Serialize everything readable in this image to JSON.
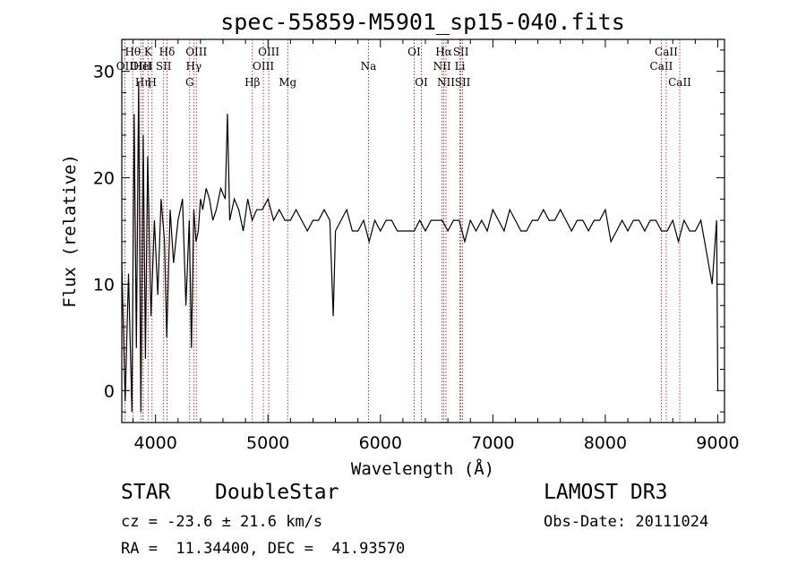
{
  "chart_data": {
    "type": "line",
    "title": "spec-55859-M5901_sp15-040.fits",
    "xlabel": "Wavelength (Å)",
    "ylabel": "Flux (relative)",
    "xlim": [
      3700,
      9060
    ],
    "ylim": [
      -3,
      33
    ],
    "xticks": [
      4000,
      5000,
      6000,
      7000,
      8000,
      9000
    ],
    "yticks": [
      0,
      10,
      20,
      30
    ],
    "series": [
      {
        "name": "flux",
        "x": [
          3700,
          3730,
          3760,
          3790,
          3810,
          3830,
          3850,
          3870,
          3890,
          3910,
          3930,
          3960,
          3990,
          4020,
          4050,
          4080,
          4100,
          4130,
          4160,
          4200,
          4240,
          4270,
          4300,
          4320,
          4340,
          4360,
          4380,
          4400,
          4420,
          4450,
          4480,
          4510,
          4540,
          4580,
          4620,
          4640,
          4660,
          4700,
          4740,
          4780,
          4820,
          4860,
          4900,
          4950,
          5000,
          5050,
          5100,
          5150,
          5200,
          5250,
          5300,
          5350,
          5400,
          5450,
          5500,
          5550,
          5580,
          5600,
          5650,
          5700,
          5750,
          5800,
          5850,
          5900,
          5950,
          6000,
          6050,
          6100,
          6150,
          6200,
          6250,
          6300,
          6350,
          6400,
          6450,
          6500,
          6550,
          6600,
          6650,
          6700,
          6750,
          6800,
          6850,
          6900,
          6950,
          7000,
          7050,
          7100,
          7150,
          7200,
          7250,
          7300,
          7350,
          7400,
          7450,
          7500,
          7550,
          7600,
          7650,
          7700,
          7750,
          7800,
          7850,
          7900,
          7950,
          8000,
          8050,
          8100,
          8150,
          8200,
          8250,
          8300,
          8350,
          8400,
          8450,
          8500,
          8550,
          8600,
          8650,
          8700,
          8750,
          8800,
          8850,
          8900,
          8950,
          8990,
          9000
        ],
        "y": [
          12,
          -1,
          11,
          -2,
          26,
          4,
          29,
          -2,
          24,
          3,
          22,
          7,
          16,
          9,
          18,
          14,
          5,
          17,
          12,
          16,
          18,
          8,
          16,
          4,
          17,
          14,
          15,
          18,
          17,
          19,
          18,
          16,
          17,
          19,
          18,
          26,
          16,
          18,
          17,
          15,
          18,
          16,
          17,
          17,
          18,
          16,
          17,
          16,
          16,
          17,
          16,
          15,
          16,
          16,
          17,
          16,
          7,
          15,
          16,
          17,
          15,
          15,
          16,
          14,
          16,
          15,
          16,
          16,
          15,
          15,
          15,
          15,
          16,
          15,
          16,
          16,
          16,
          15,
          16,
          16,
          14,
          16,
          15,
          16,
          15,
          17,
          16,
          15,
          17,
          16,
          15,
          15,
          16,
          16,
          17,
          16,
          16,
          17,
          16,
          15,
          16,
          16,
          15,
          16,
          16,
          17,
          14,
          15,
          16,
          15,
          16,
          16,
          15,
          16,
          16,
          15,
          15,
          16,
          14,
          16,
          15,
          15,
          16,
          13,
          10,
          16,
          0
        ],
        "color": "#000000"
      }
    ],
    "line_markers": [
      {
        "label": "OII",
        "x": 3727,
        "row": 2
      },
      {
        "label": "Hθ",
        "x": 3798,
        "row": 1
      },
      {
        "label": "OIII",
        "x": 3869,
        "row": 2
      },
      {
        "label": "Hη",
        "x": 3889,
        "row": 3
      },
      {
        "label": "HeI",
        "x": 3889,
        "row": 2
      },
      {
        "label": "K",
        "x": 3934,
        "row": 1
      },
      {
        "label": "H",
        "x": 3969,
        "row": 3
      },
      {
        "label": "SII",
        "x": 4072,
        "row": 2
      },
      {
        "label": "Hδ",
        "x": 4102,
        "row": 1
      },
      {
        "label": "G",
        "x": 4304,
        "row": 3
      },
      {
        "label": "Hγ",
        "x": 4340,
        "row": 2
      },
      {
        "label": "OIII",
        "x": 4363,
        "row": 1
      },
      {
        "label": "Hβ",
        "x": 4861,
        "row": 3
      },
      {
        "label": "OIII",
        "x": 4959,
        "row": 2
      },
      {
        "label": "OIII",
        "x": 5007,
        "row": 1
      },
      {
        "label": "Mg",
        "x": 5175,
        "row": 3
      },
      {
        "label": "Na",
        "x": 5894,
        "row": 2
      },
      {
        "label": "OI",
        "x": 6300,
        "row": 1
      },
      {
        "label": "OI",
        "x": 6364,
        "row": 3
      },
      {
        "label": "NII",
        "x": 6548,
        "row": 2
      },
      {
        "label": "Hα",
        "x": 6563,
        "row": 1
      },
      {
        "label": "NII",
        "x": 6583,
        "row": 3
      },
      {
        "label": "Li",
        "x": 6707,
        "row": 2
      },
      {
        "label": "SII",
        "x": 6716,
        "row": 1
      },
      {
        "label": "SII",
        "x": 6731,
        "row": 3
      },
      {
        "label": "CaII",
        "x": 8498,
        "row": 2
      },
      {
        "label": "CaII",
        "x": 8542,
        "row": 1
      },
      {
        "label": "CaII",
        "x": 8662,
        "row": 3
      }
    ]
  },
  "info": {
    "class": "STAR",
    "subclass": "DoubleStar",
    "survey": "LAMOST DR3",
    "cz": "cz = -23.6 ± 21.6 km/s",
    "obs_date": "Obs-Date: 20111024",
    "coords": "RA =  11.34400, DEC =  41.93570"
  },
  "colors": {
    "spectrum": "#000000",
    "marker_line": "#b22222",
    "axes": "#000000"
  }
}
